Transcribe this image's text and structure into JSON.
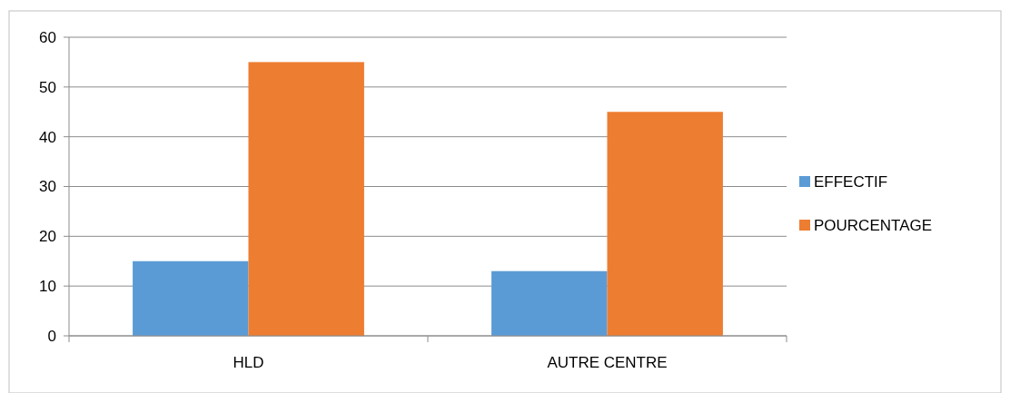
{
  "chart_data": {
    "type": "bar",
    "categories": [
      "HLD",
      "AUTRE CENTRE"
    ],
    "series": [
      {
        "name": "EFFECTIF",
        "color": "#5b9bd5",
        "values": [
          15,
          13
        ]
      },
      {
        "name": "POURCENTAGE",
        "color": "#ed7d31",
        "values": [
          55,
          45
        ]
      }
    ],
    "ylim": [
      0,
      60
    ],
    "yticks": [
      0,
      10,
      20,
      30,
      40,
      50,
      60
    ],
    "grid": "y",
    "legend": "right"
  }
}
